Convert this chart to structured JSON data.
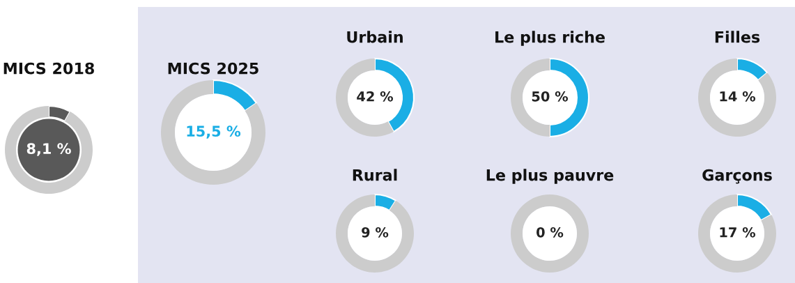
{
  "chart_data": [
    {
      "type": "donut",
      "title": "MICS 2018",
      "categories": [
        null,
        null
      ],
      "values": [
        8.1,
        91.9
      ],
      "colors": [
        "#595959",
        "#cccccc"
      ],
      "value_labels": [
        "8,1 %",
        null
      ]
    },
    {
      "type": "donut",
      "title": "MICS 2025",
      "categories": [
        null,
        null
      ],
      "values": [
        15.5,
        84.5
      ],
      "colors": [
        "#1aaee5",
        "#cccccc"
      ],
      "value_labels": [
        "15,5 %",
        null
      ]
    },
    {
      "type": "donut",
      "title": "Urbain",
      "categories": [
        null,
        null
      ],
      "values": [
        42,
        58
      ],
      "colors": [
        "#1aaee5",
        "#cccccc"
      ],
      "value_labels": [
        "42 %",
        null
      ]
    },
    {
      "type": "donut",
      "title": "Le plus riche",
      "categories": [
        null,
        null
      ],
      "values": [
        50,
        50
      ],
      "colors": [
        "#1aaee5",
        "#cccccc"
      ],
      "value_labels": [
        "50 %",
        null
      ]
    },
    {
      "type": "donut",
      "title": "Filles",
      "categories": [
        null,
        null
      ],
      "values": [
        14,
        86
      ],
      "colors": [
        "#1aaee5",
        "#cccccc"
      ],
      "value_labels": [
        "14 %",
        null
      ]
    },
    {
      "type": "donut",
      "title": "Rural",
      "categories": [
        null,
        null
      ],
      "values": [
        9,
        91
      ],
      "colors": [
        "#1aaee5",
        "#cccccc"
      ],
      "value_labels": [
        "9 %",
        null
      ]
    },
    {
      "type": "donut",
      "title": "Le plus pauvre",
      "categories": [
        null,
        null
      ],
      "values": [
        0,
        100
      ],
      "colors": [
        "#1aaee5",
        "#cccccc"
      ],
      "value_labels": [
        "0 %",
        null
      ]
    },
    {
      "type": "donut",
      "title": "Garçons",
      "categories": [
        null,
        null
      ],
      "values": [
        17,
        83
      ],
      "colors": [
        "#1aaee5",
        "#cccccc"
      ],
      "value_labels": [
        "17 %",
        null
      ]
    }
  ]
}
